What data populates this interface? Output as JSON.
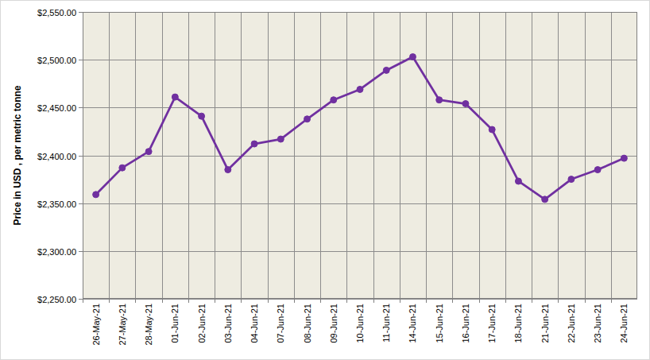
{
  "chart_data": {
    "type": "line",
    "y_label": "Price in USD , per metric tonne",
    "categories": [
      "26-May-21",
      "27-May-21",
      "28-May-21",
      "01-Jun-21",
      "02-Jun-21",
      "03-Jun-21",
      "04-Jun-21",
      "07-Jun-21",
      "08-Jun-21",
      "09-Jun-21",
      "10-Jun-21",
      "11-Jun-21",
      "14-Jun-21",
      "15-Jun-21",
      "16-Jun-21",
      "17-Jun-21",
      "18-Jun-21",
      "21-Jun-21",
      "22-Jun-21",
      "23-Jun-21",
      "24-Jun-21"
    ],
    "values": [
      2359,
      2387,
      2404,
      2461,
      2441,
      2385,
      2412,
      2417,
      2438,
      2458,
      2469,
      2489,
      2503,
      2458,
      2454,
      2427,
      2373,
      2354,
      2375,
      2385,
      2397
    ],
    "color": "#7030a0",
    "marker": "circle",
    "ylim": [
      2250,
      2550
    ],
    "yticks": [
      {
        "value": 2250,
        "label": "$2,250.00"
      },
      {
        "value": 2300,
        "label": "$2,300.00"
      },
      {
        "value": 2350,
        "label": "$2,350.00"
      },
      {
        "value": 2400,
        "label": "$2,400.00"
      },
      {
        "value": 2450,
        "label": "$2,450.00"
      },
      {
        "value": 2500,
        "label": "$2,500.00"
      },
      {
        "value": 2550,
        "label": "$2,550.00"
      }
    ],
    "grid": true
  }
}
